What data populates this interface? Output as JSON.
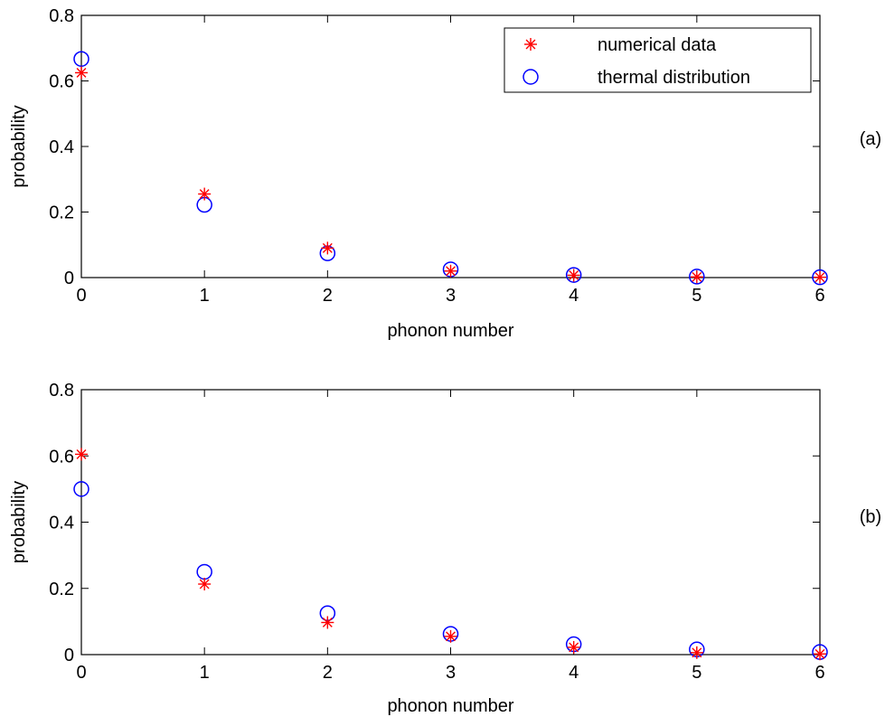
{
  "chart_data": [
    {
      "type": "scatter",
      "panel_label": "(a)",
      "xlabel": "phonon number",
      "ylabel": "probability",
      "xlim": [
        0,
        6
      ],
      "ylim": [
        0,
        0.8
      ],
      "xticks": [
        0,
        1,
        2,
        3,
        4,
        5,
        6
      ],
      "xtick_labels": [
        "0",
        "1",
        "2",
        "3",
        "4",
        "5",
        "6"
      ],
      "yticks": [
        0,
        0.2,
        0.4,
        0.6,
        0.8
      ],
      "ytick_labels": [
        "0",
        "0.2",
        "0.4",
        "0.6",
        "0.8"
      ],
      "grid": false,
      "legend_position": "top-right",
      "series": [
        {
          "name": "numerical data",
          "marker": "asterisk",
          "color": "#ff0000",
          "x": [
            0,
            1,
            2,
            3,
            4,
            5,
            6
          ],
          "y": [
            0.625,
            0.255,
            0.09,
            0.02,
            0.007,
            0.002,
            0.001
          ]
        },
        {
          "name": "thermal distribution",
          "marker": "circle",
          "color": "#0000ff",
          "x": [
            0,
            1,
            2,
            3,
            4,
            5,
            6
          ],
          "y": [
            0.667,
            0.222,
            0.074,
            0.025,
            0.008,
            0.003,
            0.001
          ]
        }
      ]
    },
    {
      "type": "scatter",
      "panel_label": "(b)",
      "xlabel": "phonon number",
      "ylabel": "probability",
      "xlim": [
        0,
        6
      ],
      "ylim": [
        0,
        0.8
      ],
      "xticks": [
        0,
        1,
        2,
        3,
        4,
        5,
        6
      ],
      "xtick_labels": [
        "0",
        "1",
        "2",
        "3",
        "4",
        "5",
        "6"
      ],
      "yticks": [
        0,
        0.2,
        0.4,
        0.6,
        0.8
      ],
      "ytick_labels": [
        "0",
        "0.2",
        "0.4",
        "0.6",
        "0.8"
      ],
      "grid": false,
      "series": [
        {
          "name": "numerical data",
          "marker": "asterisk",
          "color": "#ff0000",
          "x": [
            0,
            1,
            2,
            3,
            4,
            5,
            6
          ],
          "y": [
            0.605,
            0.213,
            0.097,
            0.055,
            0.022,
            0.006,
            0.002
          ]
        },
        {
          "name": "thermal distribution",
          "marker": "circle",
          "color": "#0000ff",
          "x": [
            0,
            1,
            2,
            3,
            4,
            5,
            6
          ],
          "y": [
            0.5,
            0.25,
            0.125,
            0.0625,
            0.03125,
            0.0156,
            0.0078
          ]
        }
      ]
    }
  ]
}
